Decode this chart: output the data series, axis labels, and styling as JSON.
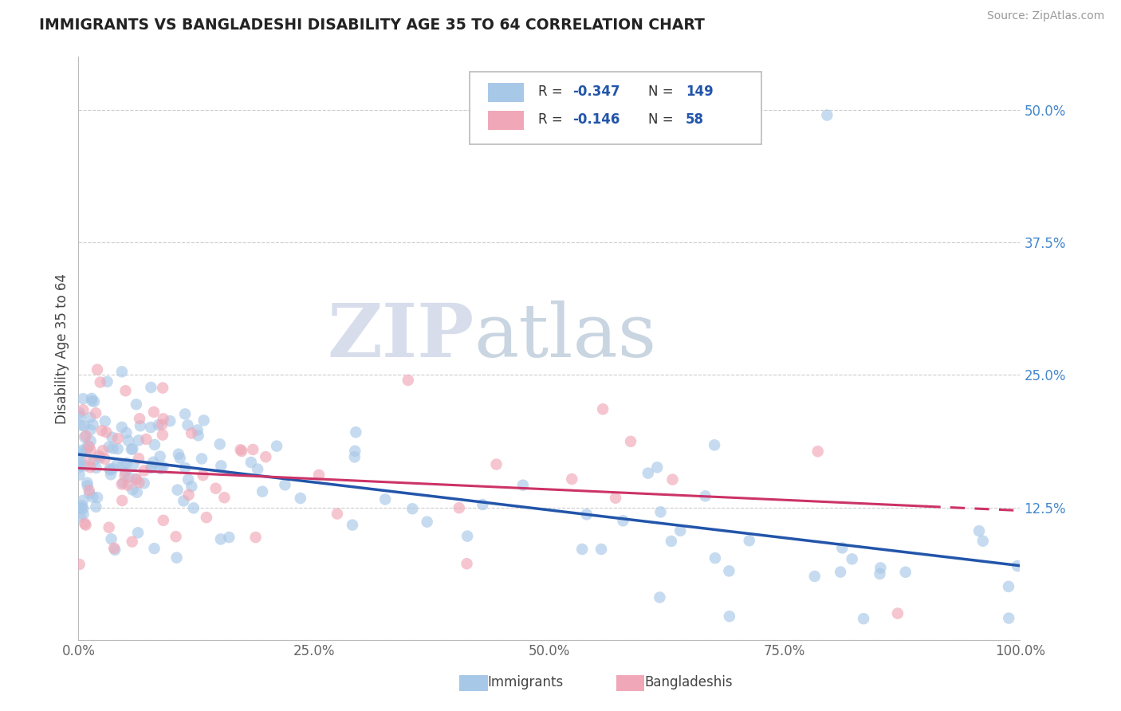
{
  "title": "IMMIGRANTS VS BANGLADESHI DISABILITY AGE 35 TO 64 CORRELATION CHART",
  "source_text": "Source: ZipAtlas.com",
  "ylabel": "Disability Age 35 to 64",
  "xlim": [
    0.0,
    1.0
  ],
  "ylim": [
    0.0,
    0.55
  ],
  "xtick_vals": [
    0.0,
    0.25,
    0.5,
    0.75,
    1.0
  ],
  "xtick_labels": [
    "0.0%",
    "25.0%",
    "50.0%",
    "75.0%",
    "100.0%"
  ],
  "ytick_vals": [
    0.0,
    0.125,
    0.25,
    0.375,
    0.5
  ],
  "ytick_labels": [
    "",
    "12.5%",
    "25.0%",
    "37.5%",
    "50.0%"
  ],
  "blue_color": "#a8c8e8",
  "pink_color": "#f0a8b8",
  "line_blue": "#2255aa",
  "line_pink": "#cc3366",
  "watermark_zip": "ZIP",
  "watermark_atlas": "atlas",
  "blue_r": -0.347,
  "blue_n": 149,
  "pink_r": -0.146,
  "pink_n": 58,
  "legend_text_color": "#2255aa",
  "ytick_color": "#4488cc",
  "xtick_color": "#666666"
}
